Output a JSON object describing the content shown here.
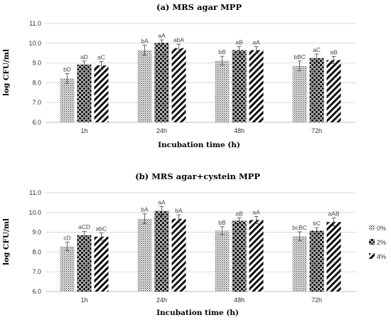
{
  "chart_data": [
    {
      "type": "bar",
      "title": "(a) MRS agar MPP",
      "xlabel": "Incubation time (h)",
      "ylabel": "log CFU/ml",
      "ylim": [
        6.0,
        11.0
      ],
      "yticks": [
        "6.0",
        "7.0",
        "8.0",
        "9.0",
        "10.0",
        "11.0"
      ],
      "grid": true,
      "categories": [
        "1h",
        "24h",
        "48h",
        "72h"
      ],
      "series": [
        {
          "name": "0%",
          "values": [
            8.22,
            9.65,
            9.12,
            8.85
          ],
          "errors": [
            0.25,
            0.25,
            0.22,
            0.25
          ],
          "labels": [
            "bD",
            "bA",
            "bB",
            "bBC"
          ]
        },
        {
          "name": "2%",
          "values": [
            8.92,
            10.02,
            9.65,
            9.25
          ],
          "errors": [
            0.18,
            0.15,
            0.18,
            0.2
          ],
          "labels": [
            "aD",
            "aA",
            "aB",
            "aC"
          ]
        },
        {
          "name": "4%",
          "values": [
            8.88,
            9.75,
            9.65,
            9.15
          ],
          "errors": [
            0.2,
            0.2,
            0.18,
            0.18
          ],
          "labels": [
            "aC",
            "abA",
            "aA",
            "aB"
          ]
        }
      ]
    },
    {
      "type": "bar",
      "title": "(b) MRS agar+cystein MPP",
      "xlabel": "Incubation time (h)",
      "ylabel": "log CFU/ml",
      "ylim": [
        6.0,
        11.0
      ],
      "yticks": [
        "6.0",
        "7.0",
        "8.0",
        "9.0",
        "10.0",
        "11.0"
      ],
      "grid": true,
      "legend_position": "right",
      "categories": [
        "1h",
        "24h",
        "48h",
        "72h"
      ],
      "series": [
        {
          "name": "0%",
          "values": [
            8.28,
            9.68,
            9.08,
            8.8
          ],
          "errors": [
            0.22,
            0.25,
            0.2,
            0.22
          ],
          "labels": [
            "cD",
            "bA",
            "bB",
            "bcBC"
          ]
        },
        {
          "name": "2%",
          "values": [
            8.85,
            10.08,
            9.58,
            9.08
          ],
          "errors": [
            0.2,
            0.22,
            0.15,
            0.15
          ],
          "labels": [
            "aCD",
            "aA",
            "aB",
            "bC"
          ]
        },
        {
          "name": "4%",
          "values": [
            8.78,
            9.68,
            9.62,
            9.52
          ],
          "errors": [
            0.18,
            0.2,
            0.18,
            0.2
          ],
          "labels": [
            "abC",
            "bA",
            "aA",
            "aAB"
          ]
        }
      ]
    }
  ],
  "colors": {
    "pattern_ink": "#222222",
    "grid": "#d9d9d9",
    "axis": "#bfbfbf"
  }
}
